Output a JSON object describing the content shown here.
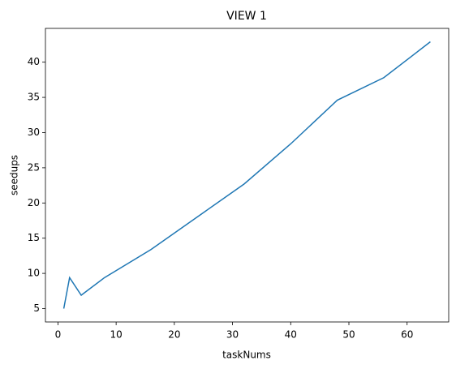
{
  "chart_data": {
    "type": "line",
    "title": "VIEW 1",
    "x_label": "taskNums",
    "y_label": "seedups",
    "x": [
      1,
      2,
      4,
      8,
      16,
      32,
      40,
      48,
      56,
      64
    ],
    "series": [
      {
        "name": "seedups",
        "color": "#1f77b4",
        "values": [
          5.0,
          9.4,
          6.9,
          9.4,
          13.4,
          22.7,
          28.4,
          34.6,
          37.8,
          42.9
        ]
      }
    ],
    "xlim": [
      -2.15,
      67.15
    ],
    "xticks": [
      0,
      10,
      20,
      30,
      40,
      50,
      60
    ],
    "ylim": [
      3.1,
      44.8
    ],
    "yticks": [
      5,
      10,
      15,
      20,
      25,
      30,
      35,
      40
    ]
  }
}
